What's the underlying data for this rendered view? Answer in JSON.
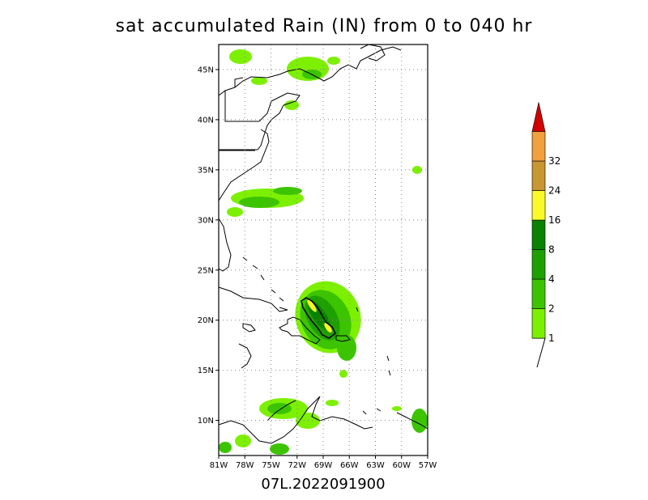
{
  "title": "sat accumulated Rain (IN) from 0 to 040 hr",
  "footer": "07L.2022091900",
  "map": {
    "lat_labels": [
      "45N",
      "40N",
      "35N",
      "30N",
      "25N",
      "20N",
      "15N",
      "10N"
    ],
    "lon_labels": [
      "81W",
      "78W",
      "75W",
      "72W",
      "69W",
      "66W",
      "63W",
      "60W",
      "57W"
    ],
    "lat_range": [
      6.5,
      47.5
    ],
    "lon_range": [
      -81,
      -57
    ],
    "grid": "dotted"
  },
  "colorbar": {
    "levels": [
      "1",
      "2",
      "4",
      "8",
      "16",
      "24",
      "32"
    ],
    "colors": [
      "#7cf000",
      "#3cc400",
      "#1ea000",
      "#0a8200",
      "#fafa28",
      "#c89632",
      "#f0a03c",
      "#d20000"
    ]
  }
}
